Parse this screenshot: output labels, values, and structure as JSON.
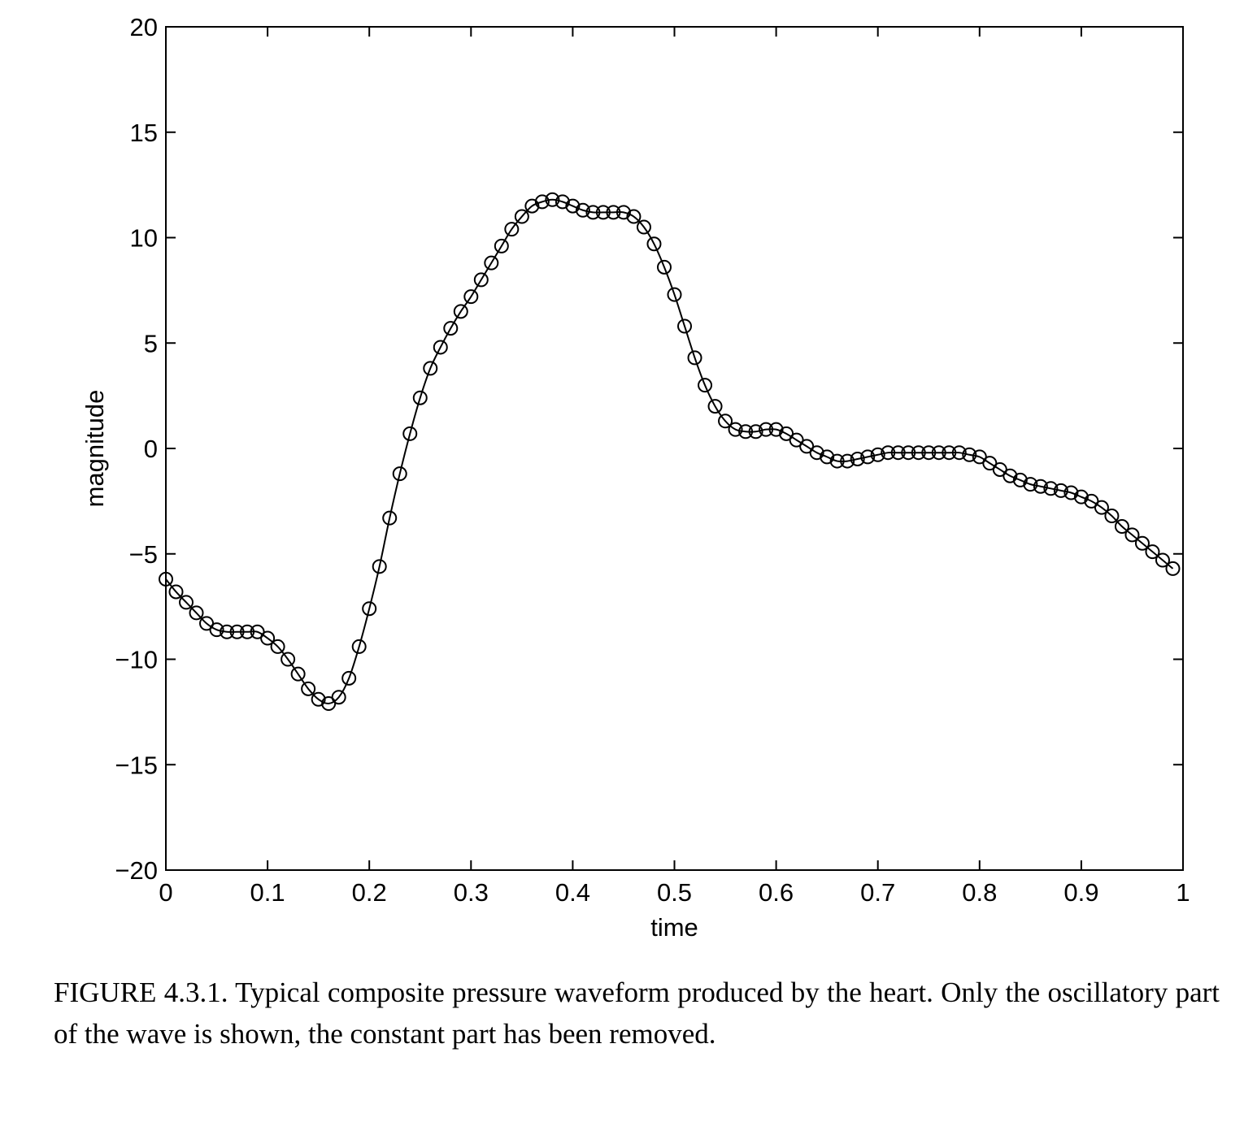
{
  "chart_data": {
    "type": "line",
    "title": "",
    "xlabel": "time",
    "ylabel": "magnitude",
    "xlim": [
      0,
      1
    ],
    "ylim": [
      -20,
      20
    ],
    "xticks": [
      "0",
      "0.1",
      "0.2",
      "0.3",
      "0.4",
      "0.5",
      "0.6",
      "0.7",
      "0.8",
      "0.9",
      "1"
    ],
    "yticks": [
      "20",
      "15",
      "10",
      "5",
      "0",
      "−5",
      "−10",
      "−15",
      "−20"
    ],
    "xtick_values": [
      0,
      0.1,
      0.2,
      0.3,
      0.4,
      0.5,
      0.6,
      0.7,
      0.8,
      0.9,
      1
    ],
    "ytick_values": [
      20,
      15,
      10,
      5,
      0,
      -5,
      -10,
      -15,
      -20
    ],
    "grid": false,
    "legend": "none",
    "marker": "open-circle",
    "line_color": "#000000",
    "x": [
      0,
      0.01,
      0.02,
      0.03,
      0.04,
      0.05,
      0.06,
      0.07,
      0.08,
      0.09,
      0.1,
      0.11,
      0.12,
      0.13,
      0.14,
      0.15,
      0.16,
      0.17,
      0.18,
      0.19,
      0.2,
      0.21,
      0.22,
      0.23,
      0.24,
      0.25,
      0.26,
      0.27,
      0.28,
      0.29,
      0.3,
      0.31,
      0.32,
      0.33,
      0.34,
      0.35,
      0.36,
      0.37,
      0.38,
      0.39,
      0.4,
      0.41,
      0.42,
      0.43,
      0.44,
      0.45,
      0.46,
      0.47,
      0.48,
      0.49,
      0.5,
      0.51,
      0.52,
      0.53,
      0.54,
      0.55,
      0.56,
      0.57,
      0.58,
      0.59,
      0.6,
      0.61,
      0.62,
      0.63,
      0.64,
      0.65,
      0.66,
      0.67,
      0.68,
      0.69,
      0.7,
      0.71,
      0.72,
      0.73,
      0.74,
      0.75,
      0.76,
      0.77,
      0.78,
      0.79,
      0.8,
      0.81,
      0.82,
      0.83,
      0.84,
      0.85,
      0.86,
      0.87,
      0.88,
      0.89,
      0.9,
      0.91,
      0.92,
      0.93,
      0.94,
      0.95,
      0.96,
      0.97,
      0.98,
      0.99
    ],
    "series": [
      {
        "values": [
          -6.2,
          -6.8,
          -7.3,
          -7.8,
          -8.3,
          -8.6,
          -8.7,
          -8.7,
          -8.7,
          -8.7,
          -9.0,
          -9.4,
          -10.0,
          -10.7,
          -11.4,
          -11.9,
          -12.1,
          -11.8,
          -10.9,
          -9.4,
          -7.6,
          -5.6,
          -3.3,
          -1.2,
          0.7,
          2.4,
          3.8,
          4.8,
          5.7,
          6.5,
          7.2,
          8.0,
          8.8,
          9.6,
          10.4,
          11.0,
          11.5,
          11.7,
          11.8,
          11.7,
          11.5,
          11.3,
          11.2,
          11.2,
          11.2,
          11.2,
          11.0,
          10.5,
          9.7,
          8.6,
          7.3,
          5.8,
          4.3,
          3.0,
          2.0,
          1.3,
          0.9,
          0.8,
          0.8,
          0.9,
          0.9,
          0.7,
          0.4,
          0.1,
          -0.2,
          -0.4,
          -0.6,
          -0.6,
          -0.5,
          -0.4,
          -0.3,
          -0.2,
          -0.2,
          -0.2,
          -0.2,
          -0.2,
          -0.2,
          -0.2,
          -0.2,
          -0.3,
          -0.4,
          -0.7,
          -1.0,
          -1.3,
          -1.5,
          -1.7,
          -1.8,
          -1.9,
          -2.0,
          -2.1,
          -2.3,
          -2.5,
          -2.8,
          -3.2,
          -3.7,
          -4.1,
          -4.5,
          -4.9,
          -5.3,
          -5.7
        ]
      }
    ]
  },
  "caption": "FIGURE 4.3.1. Typical composite pressure waveform produced by the heart. Only the oscillatory part of the wave is shown, the constant part has been removed."
}
